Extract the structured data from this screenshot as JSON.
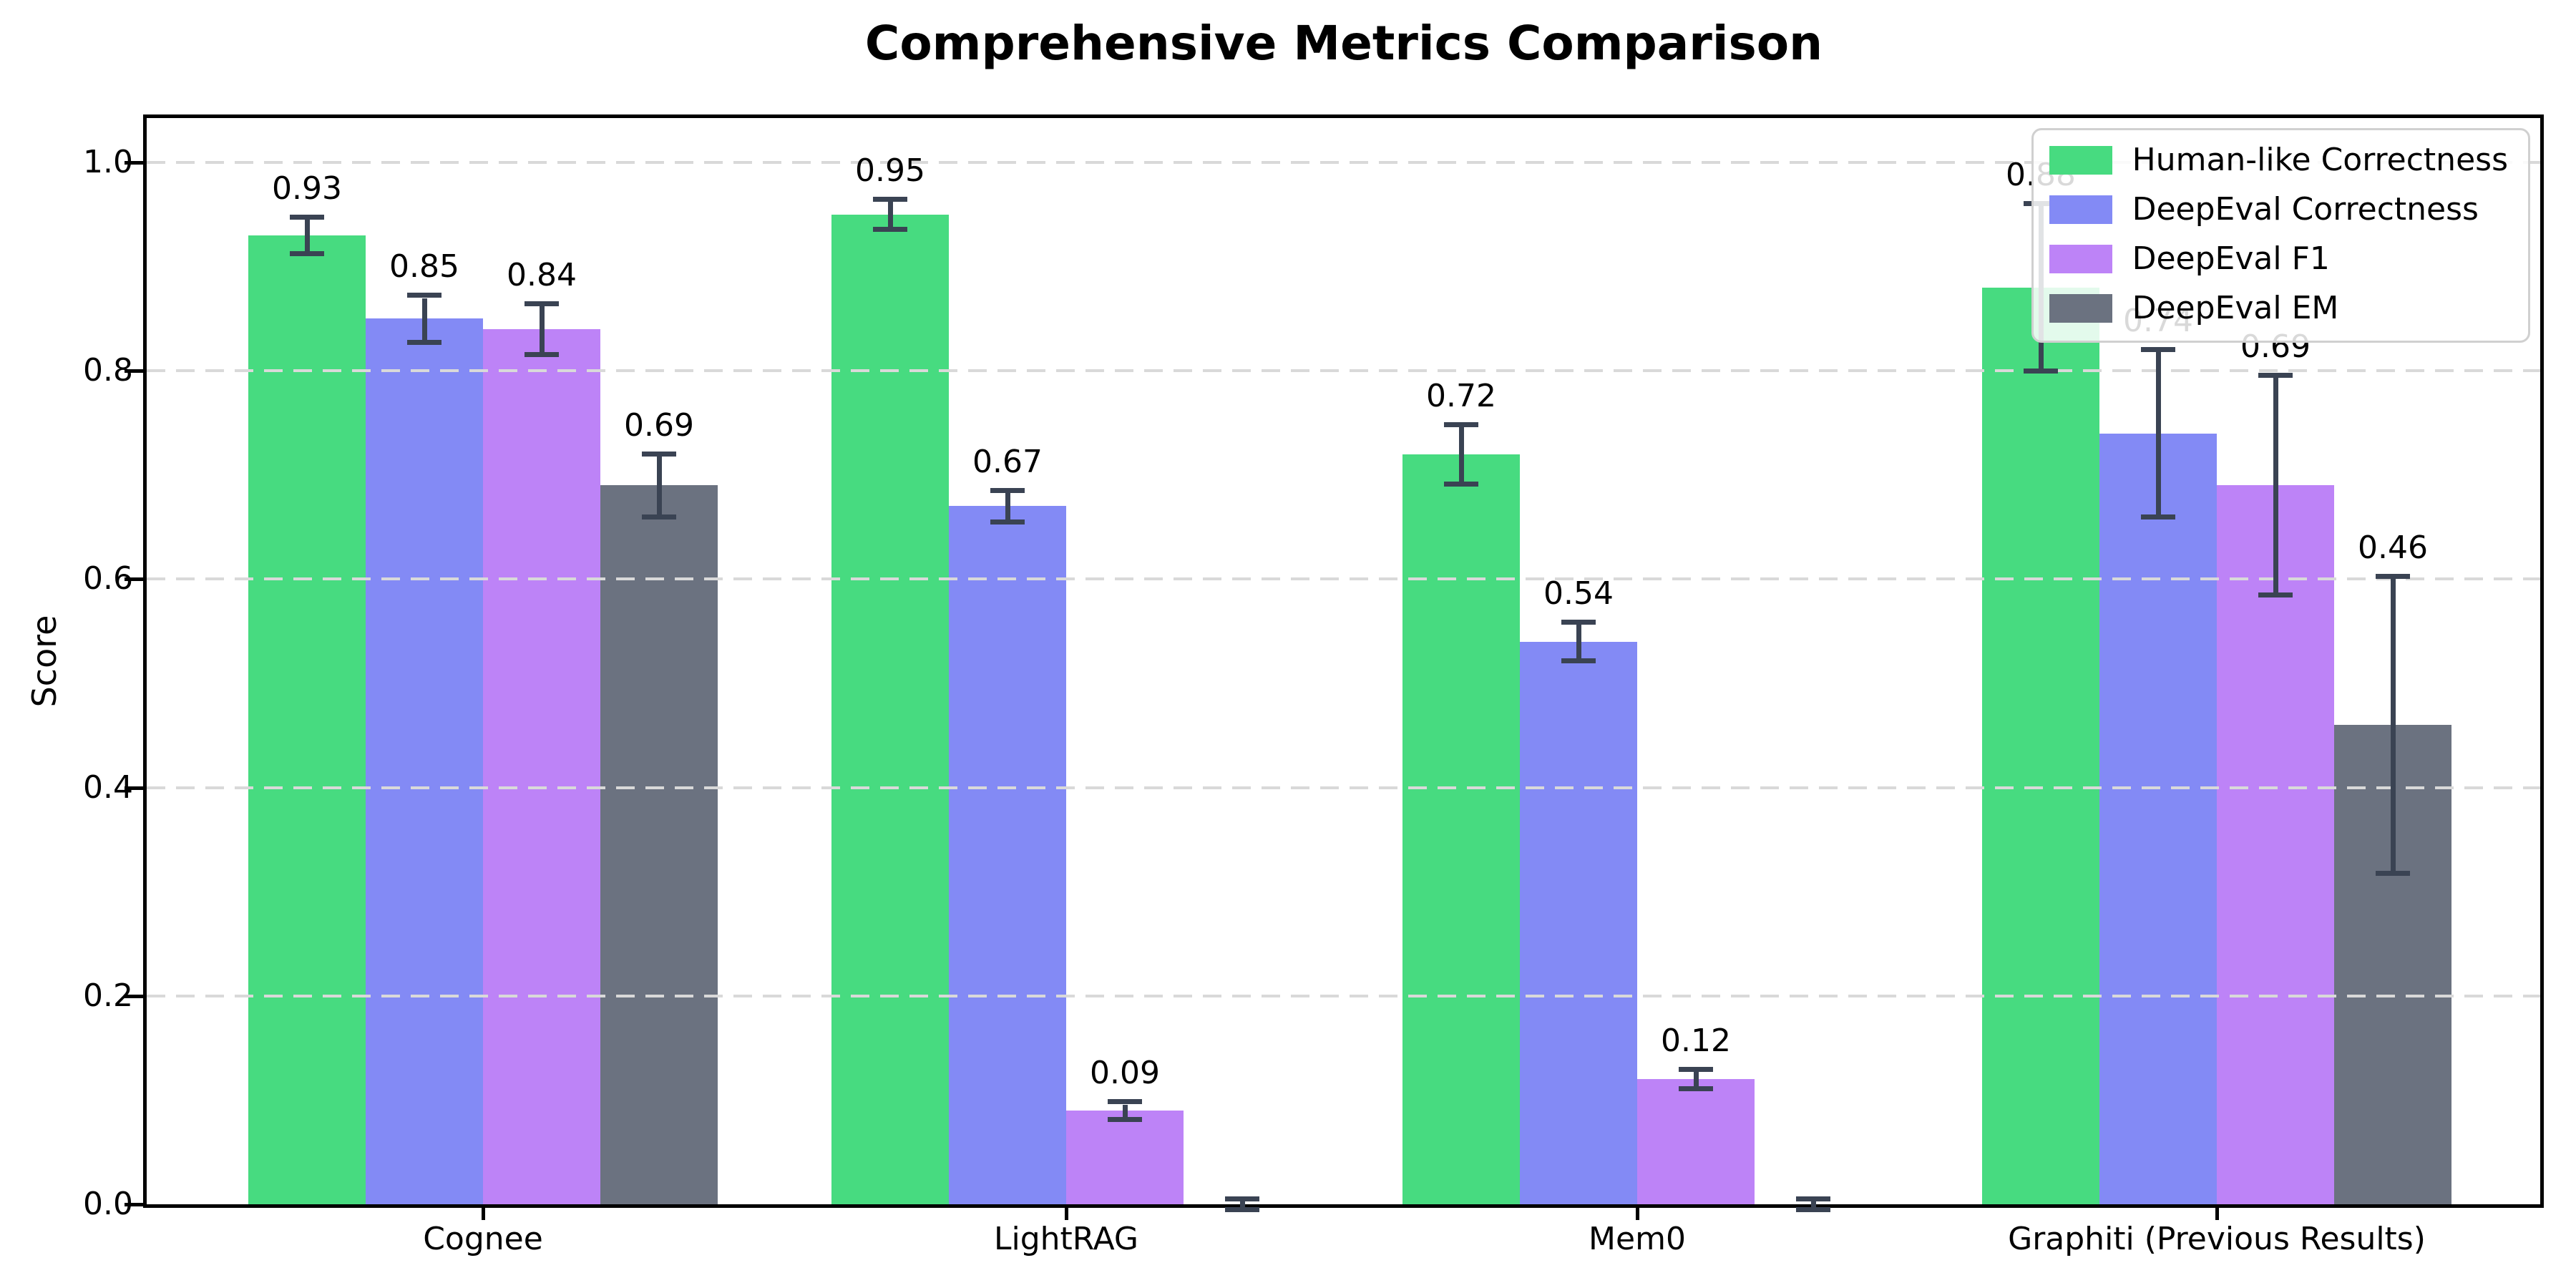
{
  "chart_data": {
    "type": "bar",
    "title": "Comprehensive Metrics Comparison",
    "xlabel": "",
    "ylabel": "Score",
    "ylim": [
      0.0,
      1.05
    ],
    "yticks": [
      0.0,
      0.2,
      0.4,
      0.6,
      0.8,
      1.0
    ],
    "ytick_labels": [
      "0.0",
      "0.2",
      "0.4",
      "0.6",
      "0.8",
      "1.0"
    ],
    "grid": "horizontal dashed gridlines at each y tick, drawn over bars",
    "grid_color": "#d9d9d9",
    "axis_color": "#000000",
    "error_bar_color": "#3a4353",
    "legend_position": "upper right",
    "categories": [
      "Cognee",
      "LightRAG",
      "Mem0",
      "Graphiti (Previous Results)"
    ],
    "series": [
      {
        "name": "Human-like Correctness",
        "color": "#47db80",
        "values": [
          0.93,
          0.95,
          0.72,
          0.88
        ],
        "errors": [
          0.015,
          0.012,
          0.026,
          0.078
        ],
        "value_labels": [
          "0.93",
          "0.95",
          "0.72",
          "0.88"
        ]
      },
      {
        "name": "DeepEval Correctness",
        "color": "#838af5",
        "values": [
          0.85,
          0.67,
          0.54,
          0.74
        ],
        "errors": [
          0.02,
          0.013,
          0.016,
          0.078
        ],
        "value_labels": [
          "0.85",
          "0.67",
          "0.54",
          "0.74"
        ]
      },
      {
        "name": "DeepEval F1",
        "color": "#bd83f7",
        "values": [
          0.84,
          0.09,
          0.12,
          0.69
        ],
        "errors": [
          0.022,
          0.006,
          0.007,
          0.103
        ],
        "value_labels": [
          "0.84",
          "0.09",
          "0.12",
          "0.69"
        ]
      },
      {
        "name": "DeepEval EM",
        "color": "#6b7280",
        "values": [
          0.69,
          0.0,
          0.0,
          0.46
        ],
        "errors": [
          0.028,
          0.003,
          0.003,
          0.14
        ],
        "value_labels": [
          "0.69",
          "",
          "",
          "0.46"
        ]
      }
    ]
  }
}
